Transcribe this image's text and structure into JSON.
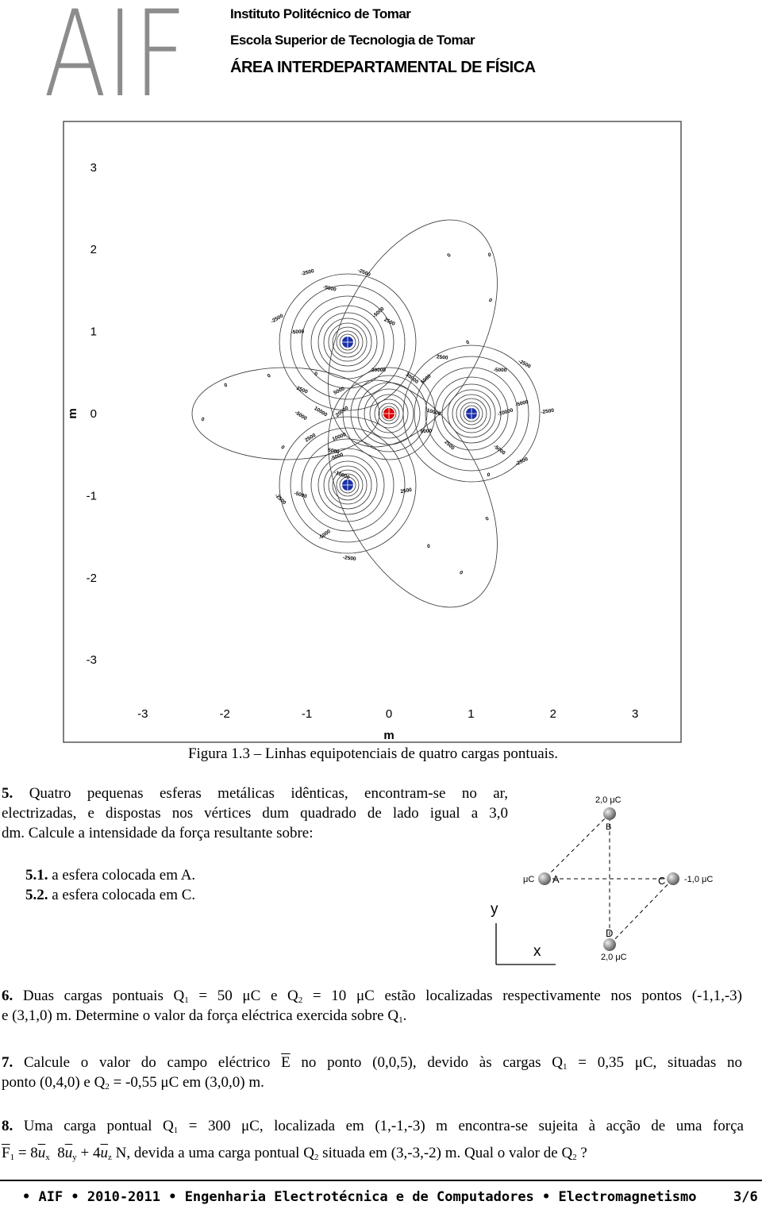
{
  "header": {
    "logo": "AIF",
    "institute": "Instituto Politécnico de Tomar",
    "school": "Escola Superior de Tecnologia de Tomar",
    "area": "ÁREA INTERDEPARTAMENTAL DE FÍSICA"
  },
  "figure": {
    "xticks": [
      -3,
      -2,
      -1,
      0,
      1,
      2,
      3
    ],
    "yticks": [
      -3,
      -2,
      -1,
      0,
      1,
      2,
      3
    ],
    "xlabel": "m",
    "ylabel": "m",
    "contour_labels": [
      "0",
      "0",
      "0",
      "0",
      "0",
      "0",
      "0",
      "0",
      "0",
      "0",
      "0",
      "0",
      "0",
      "-2500",
      "-2500",
      "-2500",
      "-2500",
      "-2500",
      "-2500",
      "-2500",
      "-2500",
      "-5000",
      "-5000",
      "-5000",
      "-5000",
      "-5000",
      "-5000",
      "-5000",
      "-5000",
      "-5000",
      "-5000",
      "2500",
      "2500",
      "2500",
      "2500",
      "2500",
      "2500",
      "5000",
      "5000",
      "5000",
      "5000",
      "10000",
      "10000",
      "10000",
      "20000",
      "20000",
      "30000",
      "-10000",
      "-10000"
    ],
    "caption": "Figura 1.3 – Linhas equipotenciais de quatro cargas pontuais."
  },
  "p5": {
    "number": "5.",
    "lines": [
      "Quatro pequenas esferas metálicas idênticas, encontram-se no ar,",
      "electrizadas, e dispostas nos vértices dum quadrado de lado igual a 3,0",
      "dm. Calcule a intensidade da força resultante sobre:"
    ],
    "items": [
      {
        "number": "5.1.",
        "text": "a esfera colocada em A."
      },
      {
        "number": "5.2.",
        "text": "a esfera colocada em C."
      }
    ]
  },
  "diagram": {
    "charge_B": "2,0 μC",
    "B": "B",
    "charge_A": "μC",
    "A": "A",
    "C": "C",
    "charge_C": "-1,0 μC",
    "D": "D",
    "charge_D": "2,0 μC",
    "axis_y": "y",
    "axis_x": "x"
  },
  "p6": {
    "number": "6.",
    "text": [
      "Duas cargas pontuais Q",
      "1",
      " = 50 μC e Q",
      "2",
      " = 10 μC estão localizadas respectivamente nos pontos (-1,1,-3)",
      "e (3,1,0) m. Determine o valor da força eléctrica exercida sobre Q",
      "1",
      "."
    ]
  },
  "p7": {
    "number": "7.",
    "text": [
      "Calcule o valor do campo eléctrico ",
      "E",
      " no ponto (0,0,5), devido às cargas Q",
      "1",
      " = 0,35 μC, situadas no",
      "ponto (0,4,0) e Q",
      "2",
      " = -0,55 μC em (3,0,0) m."
    ]
  },
  "p8": {
    "number": "8.",
    "text": [
      "Uma carga pontual Q",
      "1",
      " = 300 μC, localizada em (1,-1,-3) m encontra-se sujeita à acção de uma força",
      "F",
      "1",
      " = 8",
      "u",
      "x",
      "  8",
      "u",
      "y",
      " + 4",
      "u",
      "z",
      " N, devida a uma carga pontual Q",
      "2",
      " situada em (3,-3,-2) m. Qual o valor de Q",
      "2",
      " ?"
    ]
  },
  "footer": {
    "text": "• AIF • 2010-2011 • Engenharia Electrotécnica e de Computadores • Electromagnetismo",
    "page": "3/6"
  }
}
